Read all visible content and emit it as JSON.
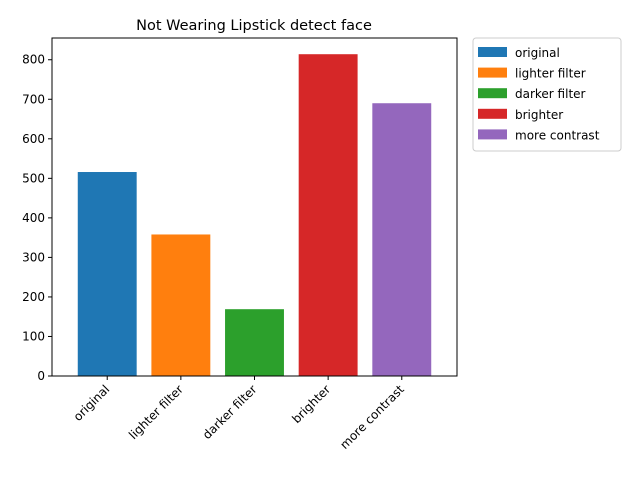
{
  "chart_data": {
    "type": "bar",
    "title": "Not Wearing Lipstick detect face",
    "xlabel": "",
    "ylabel": "",
    "categories": [
      "original",
      "lighter filter",
      "darker filter",
      "brighter",
      "more contrast"
    ],
    "values": [
      516,
      358,
      169,
      814,
      690
    ],
    "colors": [
      "#1f77b4",
      "#ff7f0e",
      "#2ca02c",
      "#d62728",
      "#9467bd"
    ],
    "ylim": [
      0,
      855
    ],
    "yticks": [
      0,
      100,
      200,
      300,
      400,
      500,
      600,
      700,
      800
    ],
    "grid": false,
    "legend": {
      "placement": "outside-top-right",
      "entries": [
        "original",
        "lighter filter",
        "darker filter",
        "brighter",
        "more contrast"
      ]
    }
  }
}
